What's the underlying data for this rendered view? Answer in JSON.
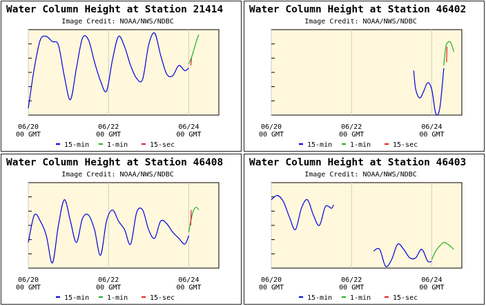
{
  "legend": [
    {
      "label": "15-min",
      "color": "#0000e0"
    },
    {
      "label": "1-min",
      "color": "#20b020"
    },
    {
      "label": "15-sec",
      "color": "#e02020"
    }
  ],
  "colors": {
    "plot_bg": "#fff8dc",
    "grid": "#cccccc",
    "panel_bg": "#ffffff"
  },
  "chart_data": [
    {
      "type": "line",
      "title": "Water Column Height at Station 21414",
      "subtitle": "Image Credit: NOAA/NWS/NDBC",
      "xlabel": "",
      "ylabel": "",
      "x_ticks": [
        {
          "date": "06/20",
          "time": "00 GMT"
        },
        {
          "date": "06/22",
          "time": "00 GMT"
        },
        {
          "date": "06/24",
          "time": "00 GMT"
        }
      ],
      "xlim": [
        "06/20 00 GMT",
        "06/24 18 GMT"
      ],
      "y_range": [
        0,
        1
      ],
      "grid": true,
      "series": [
        {
          "name": "15-min",
          "color": "#0000e0",
          "x": [
            0.0,
            0.15,
            0.3,
            0.45,
            0.6,
            0.75,
            0.9,
            1.05,
            1.2,
            1.35,
            1.5,
            1.65,
            1.8,
            1.95,
            2.1,
            2.25,
            2.4,
            2.55,
            2.7,
            2.85,
            3.0,
            3.15,
            3.3,
            3.45,
            3.6,
            3.75,
            3.9,
            4.0
          ],
          "y": [
            0.08,
            0.55,
            0.88,
            0.92,
            0.86,
            0.82,
            0.45,
            0.18,
            0.55,
            0.9,
            0.88,
            0.62,
            0.4,
            0.28,
            0.65,
            0.92,
            0.8,
            0.58,
            0.43,
            0.42,
            0.82,
            0.96,
            0.7,
            0.48,
            0.46,
            0.58,
            0.52,
            0.55
          ]
        },
        {
          "name": "1-min",
          "color": "#20b020",
          "x": [
            4.0,
            4.05,
            4.1,
            4.15,
            4.2,
            4.25
          ],
          "y": [
            0.6,
            0.65,
            0.72,
            0.8,
            0.88,
            0.94
          ]
        },
        {
          "name": "15-sec",
          "color": "#e02020",
          "x": [
            4.05,
            4.07
          ],
          "y": [
            0.58,
            0.66
          ]
        }
      ]
    },
    {
      "type": "line",
      "title": "Water Column Height at Station 46402",
      "subtitle": "Image Credit: NOAA/NWS/NDBC",
      "xlabel": "",
      "ylabel": "",
      "x_ticks": [
        {
          "date": "06/20",
          "time": "00 GMT"
        },
        {
          "date": "06/22",
          "time": "00 GMT"
        },
        {
          "date": "06/24",
          "time": "00 GMT"
        }
      ],
      "xlim": [
        "06/20 00 GMT",
        "06/24 18 GMT"
      ],
      "y_range": [
        0,
        1
      ],
      "grid": true,
      "series": [
        {
          "name": "15-min",
          "color": "#0000e0",
          "x": [
            3.55,
            3.6,
            3.7,
            3.8,
            3.9,
            4.0,
            4.1,
            4.2,
            4.3
          ],
          "y": [
            0.52,
            0.3,
            0.2,
            0.28,
            0.38,
            0.3,
            0.02,
            0.08,
            0.55
          ]
        },
        {
          "name": "1-min",
          "color": "#20b020",
          "x": [
            4.3,
            4.35,
            4.4,
            4.45,
            4.5,
            4.55
          ],
          "y": [
            0.58,
            0.8,
            0.85,
            0.86,
            0.82,
            0.74
          ]
        },
        {
          "name": "15-sec",
          "color": "#e02020",
          "x": [
            4.37,
            4.38
          ],
          "y": [
            0.62,
            0.8
          ]
        }
      ]
    },
    {
      "type": "line",
      "title": "Water Column Height at Station 46408",
      "subtitle": "Image Credit: NOAA/NWS/NDBC",
      "xlabel": "",
      "ylabel": "",
      "x_ticks": [
        {
          "date": "06/20",
          "time": "00 GMT"
        },
        {
          "date": "06/22",
          "time": "00 GMT"
        },
        {
          "date": "06/24",
          "time": "00 GMT"
        }
      ],
      "xlim": [
        "06/20 00 GMT",
        "06/24 18 GMT"
      ],
      "y_range": [
        0,
        1
      ],
      "grid": true,
      "series": [
        {
          "name": "15-min",
          "color": "#0000e0",
          "x": [
            0.0,
            0.15,
            0.3,
            0.45,
            0.6,
            0.75,
            0.9,
            1.05,
            1.2,
            1.35,
            1.5,
            1.65,
            1.8,
            1.95,
            2.1,
            2.25,
            2.4,
            2.55,
            2.7,
            2.85,
            3.0,
            3.15,
            3.3,
            3.45,
            3.6,
            3.75,
            3.9,
            4.0
          ],
          "y": [
            0.3,
            0.62,
            0.55,
            0.38,
            0.06,
            0.5,
            0.8,
            0.55,
            0.3,
            0.58,
            0.62,
            0.45,
            0.15,
            0.55,
            0.68,
            0.55,
            0.45,
            0.28,
            0.65,
            0.68,
            0.45,
            0.35,
            0.55,
            0.52,
            0.42,
            0.35,
            0.28,
            0.38
          ]
        },
        {
          "name": "1-min",
          "color": "#20b020",
          "x": [
            4.0,
            4.05,
            4.1,
            4.15,
            4.2,
            4.25
          ],
          "y": [
            0.42,
            0.55,
            0.65,
            0.7,
            0.71,
            0.68
          ]
        },
        {
          "name": "15-sec",
          "color": "#e02020",
          "x": [
            4.05,
            4.06
          ],
          "y": [
            0.5,
            0.68
          ]
        }
      ]
    },
    {
      "type": "line",
      "title": "Water Column Height at Station 46403",
      "subtitle": "Image Credit: NOAA/NWS/NDBC",
      "xlabel": "",
      "ylabel": "",
      "x_ticks": [
        {
          "date": "06/20",
          "time": "00 GMT"
        },
        {
          "date": "06/22",
          "time": "00 GMT"
        },
        {
          "date": "06/24",
          "time": "00 GMT"
        }
      ],
      "xlim": [
        "06/20 00 GMT",
        "06/24 18 GMT"
      ],
      "y_range": [
        0,
        1
      ],
      "grid": true,
      "series": [
        {
          "name": "15-min",
          "color": "#0000e0",
          "x": [
            0.0,
            0.15,
            0.3,
            0.45,
            0.6,
            0.75,
            0.9,
            1.05,
            1.2,
            1.35,
            1.5,
            1.55
          ],
          "y": [
            0.8,
            0.85,
            0.78,
            0.6,
            0.45,
            0.7,
            0.8,
            0.62,
            0.5,
            0.72,
            0.7,
            0.74
          ]
        },
        {
          "name": "15-min",
          "color": "#0000e0",
          "x": [
            2.55,
            2.7,
            2.85,
            3.0,
            3.15,
            3.3,
            3.45,
            3.6,
            3.75,
            3.9,
            4.0
          ],
          "y": [
            0.2,
            0.22,
            0.02,
            0.1,
            0.28,
            0.22,
            0.12,
            0.12,
            0.22,
            0.08,
            0.08
          ]
        },
        {
          "name": "1-min",
          "color": "#20b020",
          "x": [
            4.0,
            4.1,
            4.2,
            4.3,
            4.4,
            4.55
          ],
          "y": [
            0.1,
            0.2,
            0.26,
            0.3,
            0.28,
            0.22
          ]
        }
      ]
    }
  ]
}
